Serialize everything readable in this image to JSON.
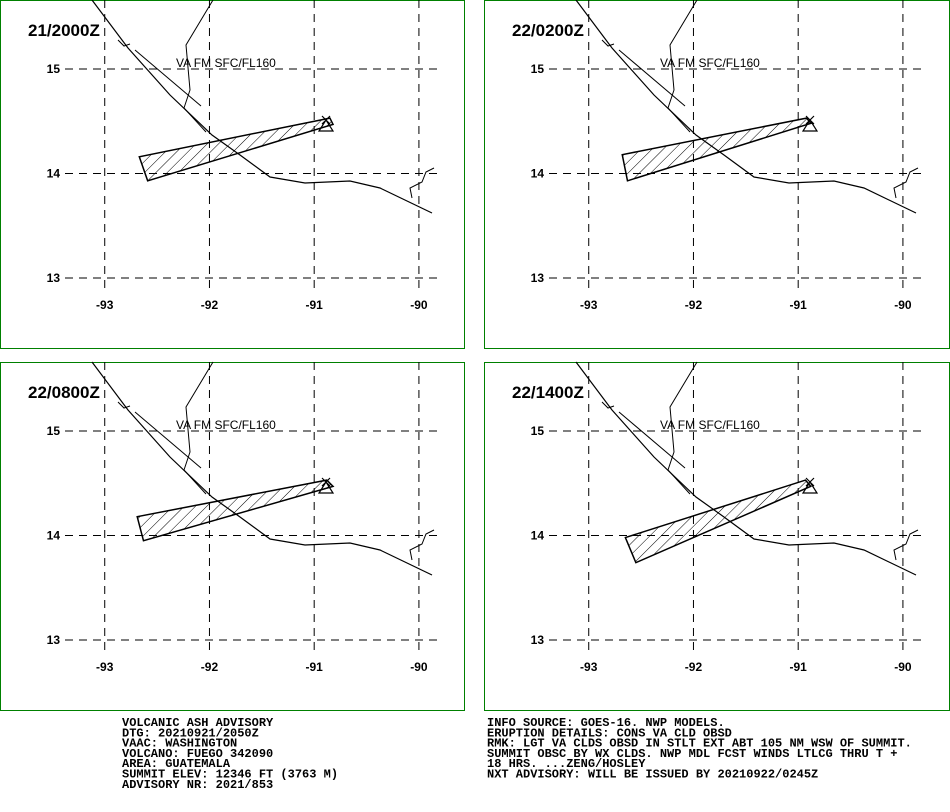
{
  "map": {
    "xlim": [
      -94.0,
      -89.56
    ],
    "ylim": [
      12.33,
      15.66
    ],
    "lon_ticks": [
      -93,
      -92,
      -91,
      -90
    ],
    "lat_ticks": [
      13,
      14,
      15
    ],
    "panels": [
      {
        "time": "21/2000Z",
        "label": "VA FM SFC/FL160",
        "polygon": [
          [
            -92.67,
            14.16
          ],
          [
            -92.59,
            13.93
          ],
          [
            -90.82,
            14.47
          ],
          [
            -90.85,
            14.53
          ]
        ]
      },
      {
        "time": "22/0200Z",
        "label": "VA FM SFC/FL160",
        "polygon": [
          [
            -92.68,
            14.18
          ],
          [
            -92.63,
            13.93
          ],
          [
            -90.88,
            14.48
          ],
          [
            -90.92,
            14.53
          ]
        ]
      },
      {
        "time": "22/0800Z",
        "label": "VA FM SFC/FL160",
        "polygon": [
          [
            -92.69,
            14.18
          ],
          [
            -92.63,
            13.95
          ],
          [
            -90.82,
            14.47
          ],
          [
            -90.88,
            14.53
          ]
        ]
      },
      {
        "time": "22/1400Z",
        "label": "VA FM SFC/FL160",
        "polygon": [
          [
            -92.65,
            13.98
          ],
          [
            -92.55,
            13.74
          ],
          [
            -90.88,
            14.47
          ],
          [
            -90.93,
            14.53
          ]
        ]
      }
    ]
  },
  "advisory_left": [
    "VOLCANIC ASH ADVISORY",
    "DTG: 20210921/2050Z",
    "VAAC: WASHINGTON",
    "VOLCANO: FUEGO 342090",
    "AREA: GUATEMALA",
    "SUMMIT ELEV: 12346 FT (3763 M)",
    "ADVISORY NR: 2021/853"
  ],
  "advisory_right": [
    "INFO SOURCE: GOES-16. NWP MODELS.",
    "ERUPTION DETAILS: CONS VA CLD OBSD",
    "RMK: LGT VA CLDS OBSD IN STLT EXT ABT 105 NM WSW OF SUMMIT.",
    "SUMMIT OBSC BY WX CLDS. NWP MDL FCST WINDS LTLCG THRU T +",
    "18 HRS. ...ZENG/HOSLEY",
    "NXT ADVISORY: WILL BE ISSUED BY 20210922/0245Z"
  ]
}
